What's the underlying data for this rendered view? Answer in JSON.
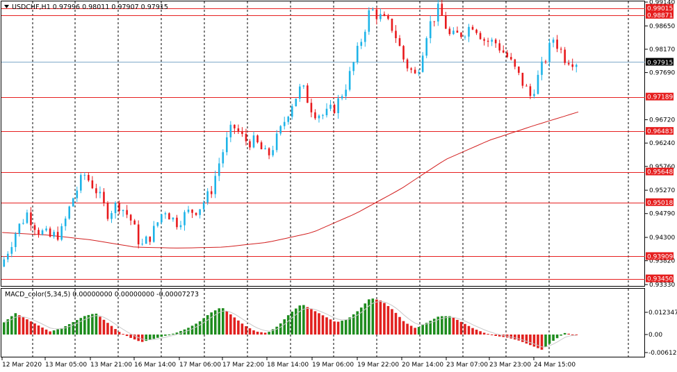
{
  "header": {
    "title_menu_icon": "triangle-down-icon",
    "symbol_line": "USDCHF,H1  0.97996 0.98011 0.97907 0.97915"
  },
  "macd": {
    "label": "MACD_color(5,34,5) 0.00000000 0.00000000 -0.00007273"
  },
  "colors": {
    "bull_candle": "#1EB4E8",
    "bear_candle": "#E8191C",
    "ma_line": "#D21E1E",
    "level_line": "#E61E1E",
    "bid_line": "#7FA9C8",
    "macd_up": "#1E8C1E",
    "macd_down": "#E1201E",
    "signal_line": "#C8C8C8",
    "badge_red": "#E61E1E",
    "badge_dark": "#000000"
  },
  "price_axis": {
    "ticks": [
      "0.99140",
      "0.98650",
      "0.98170",
      "0.97690",
      "0.96720",
      "0.96240",
      "0.95760",
      "0.95270",
      "0.94790",
      "0.94300",
      "0.93820",
      "0.93330"
    ],
    "current_price": "0.97915",
    "levels": [
      "0.99015",
      "0.98871",
      "0.97189",
      "0.96483",
      "0.95648",
      "0.95018",
      "0.93909",
      "0.93450"
    ]
  },
  "macd_axis": {
    "ticks": [
      "0.0123474",
      "0.00",
      "-0.006125"
    ]
  },
  "time_axis": {
    "labels": [
      "12 Mar 2020",
      "13 Mar 05:00",
      "13 Mar 21:00",
      "16 Mar 14:00",
      "17 Mar 06:00",
      "17 Mar 22:00",
      "18 Mar 14:00",
      "19 Mar 06:00",
      "19 Mar 22:00",
      "20 Mar 14:00",
      "23 Mar 07:00",
      "23 Mar 23:00",
      "24 Mar 15:00"
    ]
  },
  "chart_data": {
    "type": "candlestick",
    "symbol": "USDCHF",
    "timeframe": "H1",
    "ylim": [
      0.9333,
      0.9914
    ],
    "close_path": [
      0.9385,
      0.944,
      0.948,
      0.9445,
      0.943,
      0.944,
      0.951,
      0.956,
      0.953,
      0.948,
      0.95,
      0.947,
      0.941,
      0.944,
      0.949,
      0.946,
      0.948,
      0.949,
      0.952,
      0.96,
      0.966,
      0.963,
      0.9625,
      0.9595,
      0.964,
      0.97,
      0.974,
      0.969,
      0.968,
      0.97,
      0.975,
      0.982,
      0.99,
      0.988,
      0.986,
      0.979,
      0.976,
      0.986,
      0.99,
      0.984,
      0.985,
      0.987,
      0.9835,
      0.983,
      0.98,
      0.976,
      0.972,
      0.978,
      0.984,
      0.98,
      0.9792
    ],
    "ma_path": [
      0.944,
      0.9435,
      0.9425,
      0.941,
      0.9408,
      0.941,
      0.942,
      0.944,
      0.948,
      0.953,
      0.959,
      0.963,
      0.966,
      0.9688
    ],
    "macd_values": [
      0.004,
      0.007,
      0.005,
      0.003,
      0.001,
      0.002,
      0.004,
      0.006,
      0.007,
      0.004,
      0.001,
      -0.001,
      -0.0025,
      -0.0015,
      -0.0005,
      0.0005,
      0.002,
      0.004,
      0.007,
      0.009,
      0.006,
      0.003,
      0.001,
      0.0005,
      0.003,
      0.007,
      0.01,
      0.008,
      0.006,
      0.004,
      0.005,
      0.008,
      0.012,
      0.011,
      0.008,
      0.004,
      0.002,
      0.004,
      0.006,
      0.006,
      0.004,
      0.002,
      0.0005,
      -0.0005,
      -0.001,
      -0.002,
      -0.0035,
      -0.005,
      -0.002,
      0.0005,
      -0.0002
    ]
  }
}
